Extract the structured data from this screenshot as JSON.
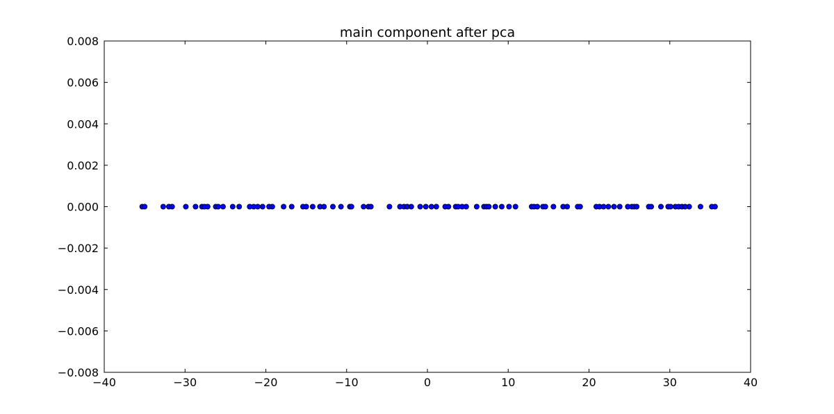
{
  "chart_data": {
    "type": "scatter",
    "title": "main component after pca",
    "xlabel": "",
    "ylabel": "",
    "xlim": [
      -40,
      40
    ],
    "ylim": [
      -0.008,
      0.008
    ],
    "x_ticks": [
      -40,
      -30,
      -20,
      -10,
      0,
      10,
      20,
      30,
      40
    ],
    "x_tick_labels": [
      "−40",
      "−30",
      "−20",
      "−10",
      "0",
      "10",
      "20",
      "30",
      "40"
    ],
    "y_ticks": [
      0.008,
      0.006,
      0.004,
      0.002,
      0.0,
      -0.002,
      -0.004,
      -0.006,
      -0.008
    ],
    "y_tick_labels": [
      "0.008",
      "0.006",
      "0.004",
      "0.002",
      "0.000",
      "−0.002",
      "−0.004",
      "−0.006",
      "−0.008"
    ],
    "grid": false,
    "legend": "none",
    "marker_color": "#0000ff",
    "series": [
      {
        "x": [
          -35.3,
          -35.0,
          -32.7,
          -32.0,
          -31.6,
          -29.9,
          -28.7,
          -27.9,
          -27.6,
          -27.2,
          -26.2,
          -25.9,
          -25.3,
          -24.1,
          -23.3,
          -22.0,
          -21.5,
          -21.0,
          -20.4,
          -19.6,
          -19.2,
          -17.8,
          -16.8,
          -15.4,
          -15.0,
          -14.2,
          -13.3,
          -12.8,
          -11.7,
          -10.7,
          -9.6,
          -9.4,
          -7.9,
          -7.3,
          -7.0,
          -4.7,
          -3.4,
          -2.9,
          -2.5,
          -2.0,
          -0.9,
          -0.2,
          0.5,
          1.1,
          2.2,
          2.6,
          3.5,
          3.8,
          4.3,
          4.8,
          6.1,
          7.0,
          7.3,
          7.6,
          8.4,
          9.2,
          10.1,
          10.9,
          12.9,
          13.2,
          13.6,
          14.3,
          14.6,
          15.6,
          16.8,
          17.3,
          18.6,
          18.9,
          20.9,
          21.3,
          21.8,
          22.4,
          23.1,
          23.8,
          24.8,
          25.3,
          25.6,
          25.9,
          27.4,
          27.7,
          28.9,
          29.8,
          30.1,
          30.7,
          31.1,
          31.5,
          31.9,
          32.4,
          33.8,
          35.2,
          35.6
        ],
        "y": [
          0.0,
          0.0,
          0.0,
          0.0,
          0.0,
          0.0,
          0.0,
          0.0,
          0.0,
          0.0,
          0.0,
          0.0,
          0.0,
          0.0,
          0.0,
          0.0,
          0.0,
          0.0,
          0.0,
          0.0,
          0.0,
          0.0,
          0.0,
          0.0,
          0.0,
          0.0,
          0.0,
          0.0,
          0.0,
          0.0,
          0.0,
          0.0,
          0.0,
          0.0,
          0.0,
          0.0,
          0.0,
          0.0,
          0.0,
          0.0,
          0.0,
          0.0,
          0.0,
          0.0,
          0.0,
          0.0,
          0.0,
          0.0,
          0.0,
          0.0,
          0.0,
          0.0,
          0.0,
          0.0,
          0.0,
          0.0,
          0.0,
          0.0,
          0.0,
          0.0,
          0.0,
          0.0,
          0.0,
          0.0,
          0.0,
          0.0,
          0.0,
          0.0,
          0.0,
          0.0,
          0.0,
          0.0,
          0.0,
          0.0,
          0.0,
          0.0,
          0.0,
          0.0,
          0.0,
          0.0,
          0.0,
          0.0,
          0.0,
          0.0,
          0.0,
          0.0,
          0.0,
          0.0,
          0.0,
          0.0,
          0.0
        ]
      }
    ]
  }
}
